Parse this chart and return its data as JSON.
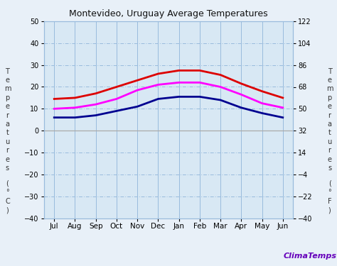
{
  "title": "Montevideo, Uruguay Average Temperatures",
  "months": [
    "Jul",
    "Aug",
    "Sep",
    "Oct",
    "Nov",
    "Dec",
    "Jan",
    "Feb",
    "Mar",
    "Apr",
    "May",
    "Jun"
  ],
  "max_temp": [
    14.5,
    15.0,
    17.0,
    20.0,
    23.0,
    26.0,
    27.5,
    27.5,
    25.5,
    21.5,
    18.0,
    15.0
  ],
  "avg_temp": [
    10.0,
    10.5,
    12.0,
    14.5,
    18.5,
    21.0,
    22.0,
    22.0,
    20.0,
    16.5,
    12.5,
    10.5
  ],
  "min_temp": [
    6.0,
    6.0,
    7.0,
    9.0,
    11.0,
    14.5,
    15.5,
    15.5,
    14.0,
    10.5,
    8.0,
    6.0
  ],
  "max_color": "#dd0000",
  "avg_color": "#ff00ff",
  "min_color": "#000090",
  "ylim_left": [
    -40,
    50
  ],
  "yticks_left": [
    -40,
    -30,
    -20,
    -10,
    0,
    10,
    20,
    30,
    40,
    50
  ],
  "ylim_right": [
    -40.0,
    122.0
  ],
  "yticks_right": [
    -40.0,
    -22.0,
    -4.0,
    14.0,
    32.0,
    50.0,
    68.0,
    86.0,
    104.0,
    122.0
  ],
  "grid_color": "#99bbdd",
  "bg_color": "#e8f0f8",
  "plot_bg": "#d8e8f4",
  "watermark": "ClimaTemps",
  "watermark_color": "#6600bb",
  "line_width": 2.0,
  "ylabel_left_chars": [
    "T",
    "e",
    "m",
    "p",
    "e",
    "r",
    "a",
    "t",
    "u",
    "r",
    "e",
    "s",
    "",
    "°",
    "C"
  ],
  "ylabel_right_chars": [
    "T",
    "e",
    "m",
    "p",
    "e",
    "r",
    "a",
    "t",
    "u",
    "r",
    "e",
    "s",
    "",
    "°",
    "F"
  ]
}
